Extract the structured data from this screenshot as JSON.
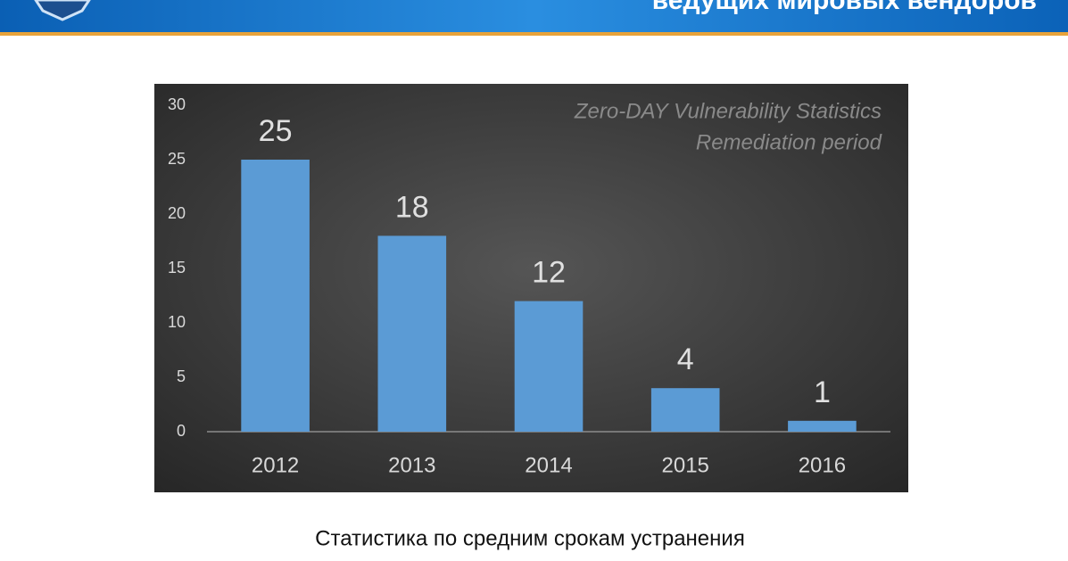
{
  "header": {
    "title": "ведущих мировых вендоров"
  },
  "caption": "Статистика по средним срокам устранения",
  "chart_data": {
    "type": "bar",
    "title": "Zero-DAY Vulnerability Statistics",
    "subtitle": "Remediation period",
    "categories": [
      "2012",
      "2013",
      "2014",
      "2015",
      "2016"
    ],
    "values": [
      25,
      18,
      12,
      4,
      1
    ],
    "color": "#5b9bd5",
    "ylim": [
      0,
      30
    ],
    "yticks": [
      0,
      5,
      10,
      15,
      20,
      25,
      30
    ],
    "grid": false,
    "data_labels": true
  }
}
